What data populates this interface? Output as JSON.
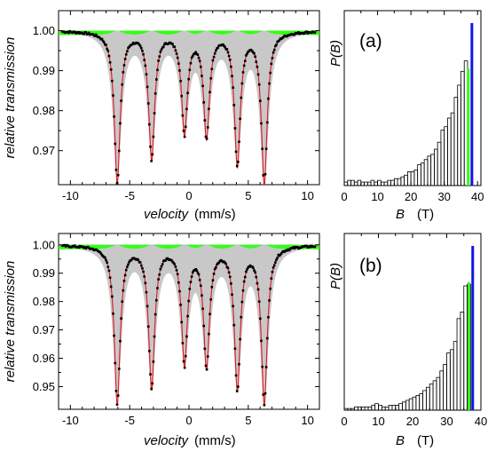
{
  "chart_data": [
    {
      "type": "scatter",
      "panel": "a",
      "xlabel": "velocity",
      "xlabel_unit": "(mm/s)",
      "ylabel": "relative transmission",
      "xlim": [
        -11,
        11
      ],
      "ylim": [
        0.9615,
        1.005
      ],
      "xticks": [
        -10,
        -5,
        0,
        5,
        10
      ],
      "yticks": [
        0.97,
        0.98,
        0.99,
        1.0
      ],
      "ytick_labels": [
        "0.97",
        "0.98",
        "0.99",
        "1.00"
      ],
      "grid": false,
      "line_positions_mm_s": [
        -6.05,
        -3.15,
        -0.38,
        1.48,
        4.08,
        6.35
      ],
      "line_minima": [
        0.9624,
        0.9683,
        0.975,
        0.974,
        0.967,
        0.962
      ],
      "series": [
        {
          "name": "",
          "role": "data",
          "color": "#000000"
        },
        {
          "name": "",
          "role": "fit",
          "color": "#e0141e"
        },
        {
          "name": "",
          "role": "distribution",
          "color": "#c8c8c8"
        },
        {
          "name": "",
          "role": "sextet-1",
          "color": "#1414e6"
        },
        {
          "name": "",
          "role": "sextet-2",
          "color": "#32ff14"
        }
      ]
    },
    {
      "type": "bar",
      "panel": "a",
      "label": "(a)",
      "xlabel": "B",
      "xlabel_unit": "(T)",
      "ylabel": "P(B)",
      "xlim": [
        0,
        41
      ],
      "xticks": [
        0,
        10,
        20,
        30,
        40
      ],
      "bin_width_T": 1,
      "histogram": [
        2,
        3,
        3,
        2,
        3,
        2,
        2,
        2,
        3,
        2,
        3,
        2,
        2,
        3,
        3,
        4,
        4,
        5,
        6,
        8,
        8,
        9,
        12,
        13,
        15,
        17,
        18,
        21,
        25,
        32,
        34,
        39,
        42,
        51,
        58,
        66,
        72
      ],
      "markers": [
        {
          "B": 37.2,
          "color": "#32ff14",
          "height": 0.72
        },
        {
          "B": 38.3,
          "color": "#1414e6",
          "height": 1.0
        }
      ]
    },
    {
      "type": "scatter",
      "panel": "b",
      "xlabel": "velocity",
      "xlabel_unit": "(mm/s)",
      "ylabel": "relative transmission",
      "xlim": [
        -11,
        11
      ],
      "ylim": [
        0.942,
        1.004
      ],
      "xticks": [
        -10,
        -5,
        0,
        5,
        10
      ],
      "yticks": [
        0.95,
        0.96,
        0.97,
        0.98,
        0.99,
        1.0
      ],
      "ytick_labels": [
        "0.95",
        "0.96",
        "0.97",
        "0.98",
        "0.99",
        "1.00"
      ],
      "grid": false,
      "line_positions_mm_s": [
        -6.05,
        -3.15,
        -0.38,
        1.48,
        4.08,
        6.35
      ],
      "line_minima": [
        0.9445,
        0.95,
        0.959,
        0.958,
        0.95,
        0.9445
      ],
      "series": [
        {
          "name": "",
          "role": "data",
          "color": "#000000"
        },
        {
          "name": "",
          "role": "fit",
          "color": "#e0141e"
        },
        {
          "name": "",
          "role": "distribution",
          "color": "#c8c8c8"
        },
        {
          "name": "",
          "role": "sextet-1",
          "color": "#1414e6"
        },
        {
          "name": "",
          "role": "sextet-2",
          "color": "#32ff14"
        }
      ]
    },
    {
      "type": "bar",
      "panel": "b",
      "label": "(b)",
      "xlabel": "B",
      "xlabel_unit": "(T)",
      "ylabel": "P(B)",
      "xlim": [
        0,
        40
      ],
      "xticks": [
        0,
        10,
        20,
        30,
        40
      ],
      "bin_width_T": 1,
      "histogram": [
        1,
        1,
        1,
        2,
        2,
        2,
        2,
        2,
        3,
        4,
        3,
        2,
        2,
        3,
        3,
        3,
        4,
        5,
        6,
        7,
        8,
        9,
        10,
        12,
        14,
        16,
        18,
        20,
        24,
        28,
        35,
        37,
        42,
        56,
        60,
        76,
        77
      ],
      "markers": [
        {
          "B": 36.5,
          "color": "#32ff14",
          "height": 0.78
        },
        {
          "B": 37.6,
          "color": "#1414e6",
          "height": 1.0
        }
      ]
    }
  ]
}
